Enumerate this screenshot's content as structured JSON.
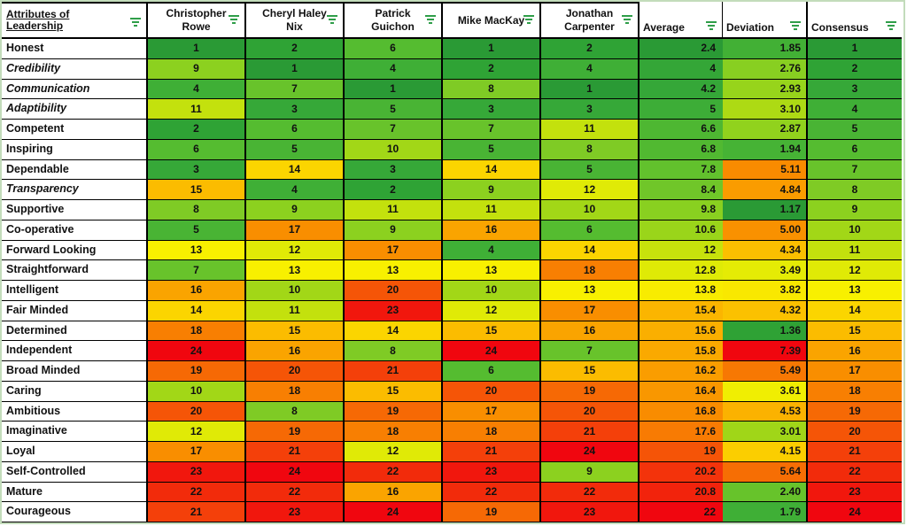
{
  "table": {
    "header": {
      "attribute_label": "Attributes of Leadership",
      "raters": [
        "Christopher Rowe",
        "Cheryl Haley Nix",
        "Patrick Guichon",
        "Mike MacKay",
        "Jonathan Carpenter"
      ],
      "average_label": "Average",
      "deviation_label": "Deviation",
      "consensus_label": "Consensus"
    },
    "rows": [
      {
        "attribute": "Honest",
        "italic": false,
        "ratings": [
          1,
          2,
          6,
          1,
          2
        ],
        "average": "2.4",
        "deviation": "1.85",
        "consensus": "1"
      },
      {
        "attribute": "Credibility",
        "italic": true,
        "ratings": [
          9,
          1,
          4,
          2,
          4
        ],
        "average": "4",
        "deviation": "2.76",
        "consensus": "2"
      },
      {
        "attribute": "Communication",
        "italic": true,
        "ratings": [
          4,
          7,
          1,
          8,
          1
        ],
        "average": "4.2",
        "deviation": "2.93",
        "consensus": "3"
      },
      {
        "attribute": "Adaptibility",
        "italic": true,
        "ratings": [
          11,
          3,
          5,
          3,
          3
        ],
        "average": "5",
        "deviation": "3.10",
        "consensus": "4"
      },
      {
        "attribute": "Competent",
        "italic": false,
        "ratings": [
          2,
          6,
          7,
          7,
          11
        ],
        "average": "6.6",
        "deviation": "2.87",
        "consensus": "5"
      },
      {
        "attribute": "Inspiring",
        "italic": false,
        "ratings": [
          6,
          5,
          10,
          5,
          8
        ],
        "average": "6.8",
        "deviation": "1.94",
        "consensus": "6"
      },
      {
        "attribute": "Dependable",
        "italic": false,
        "ratings": [
          3,
          14,
          3,
          14,
          5
        ],
        "average": "7.8",
        "deviation": "5.11",
        "consensus": "7"
      },
      {
        "attribute": "Transparency",
        "italic": true,
        "ratings": [
          15,
          4,
          2,
          9,
          12
        ],
        "average": "8.4",
        "deviation": "4.84",
        "consensus": "8"
      },
      {
        "attribute": "Supportive",
        "italic": false,
        "ratings": [
          8,
          9,
          11,
          11,
          10
        ],
        "average": "9.8",
        "deviation": "1.17",
        "consensus": "9"
      },
      {
        "attribute": "Co-operative",
        "italic": false,
        "ratings": [
          5,
          17,
          9,
          16,
          6
        ],
        "average": "10.6",
        "deviation": "5.00",
        "consensus": "10"
      },
      {
        "attribute": "Forward Looking",
        "italic": false,
        "ratings": [
          13,
          12,
          17,
          4,
          14
        ],
        "average": "12",
        "deviation": "4.34",
        "consensus": "11"
      },
      {
        "attribute": "Straightforward",
        "italic": false,
        "ratings": [
          7,
          13,
          13,
          13,
          18
        ],
        "average": "12.8",
        "deviation": "3.49",
        "consensus": "12"
      },
      {
        "attribute": "Intelligent",
        "italic": false,
        "ratings": [
          16,
          10,
          20,
          10,
          13
        ],
        "average": "13.8",
        "deviation": "3.82",
        "consensus": "13"
      },
      {
        "attribute": "Fair Minded",
        "italic": false,
        "ratings": [
          14,
          11,
          23,
          12,
          17
        ],
        "average": "15.4",
        "deviation": "4.32",
        "consensus": "14"
      },
      {
        "attribute": "Determined",
        "italic": false,
        "ratings": [
          18,
          15,
          14,
          15,
          16
        ],
        "average": "15.6",
        "deviation": "1.36",
        "consensus": "15"
      },
      {
        "attribute": "Independent",
        "italic": false,
        "ratings": [
          24,
          16,
          8,
          24,
          7
        ],
        "average": "15.8",
        "deviation": "7.39",
        "consensus": "16"
      },
      {
        "attribute": "Broad Minded",
        "italic": false,
        "ratings": [
          19,
          20,
          21,
          6,
          15
        ],
        "average": "16.2",
        "deviation": "5.49",
        "consensus": "17"
      },
      {
        "attribute": "Caring",
        "italic": false,
        "ratings": [
          10,
          18,
          15,
          20,
          19
        ],
        "average": "16.4",
        "deviation": "3.61",
        "consensus": "18"
      },
      {
        "attribute": "Ambitious",
        "italic": false,
        "ratings": [
          20,
          8,
          19,
          17,
          20
        ],
        "average": "16.8",
        "deviation": "4.53",
        "consensus": "19"
      },
      {
        "attribute": "Imaginative",
        "italic": false,
        "ratings": [
          12,
          19,
          18,
          18,
          21
        ],
        "average": "17.6",
        "deviation": "3.01",
        "consensus": "20"
      },
      {
        "attribute": "Loyal",
        "italic": false,
        "ratings": [
          17,
          21,
          12,
          21,
          24
        ],
        "average": "19",
        "deviation": "4.15",
        "consensus": "21"
      },
      {
        "attribute": "Self-Controlled",
        "italic": false,
        "ratings": [
          23,
          24,
          22,
          23,
          9
        ],
        "average": "20.2",
        "deviation": "5.64",
        "consensus": "22"
      },
      {
        "attribute": "Mature",
        "italic": false,
        "ratings": [
          22,
          22,
          16,
          22,
          22
        ],
        "average": "20.8",
        "deviation": "2.40",
        "consensus": "23"
      },
      {
        "attribute": "Courageous",
        "italic": false,
        "ratings": [
          21,
          23,
          24,
          19,
          23
        ],
        "average": "22",
        "deviation": "1.79",
        "consensus": "24"
      }
    ]
  },
  "heatmap": {
    "palette": [
      "#2A9A35",
      "#2FA335",
      "#36A838",
      "#3FAF36",
      "#49B434",
      "#55BC30",
      "#68C32B",
      "#7FCB25",
      "#8CD11F",
      "#A2D717",
      "#C3E10D",
      "#E0EA06",
      "#F8F000",
      "#FBD500",
      "#FBBC00",
      "#FAA400",
      "#F98E00",
      "#F87F02",
      "#F66905",
      "#F55507",
      "#F4400A",
      "#F22B0B",
      "#F1170D",
      "#F0060F"
    ],
    "scales": {
      "ratings": {
        "min": 1,
        "mid": 12.5,
        "max": 24
      },
      "average": {
        "min": 2.4,
        "mid": 13.3,
        "max": 22
      },
      "deviation": {
        "min": 1.17,
        "mid": 3.55,
        "max": 7.39
      },
      "consensus": {
        "min": 1,
        "mid": 12.5,
        "max": 24
      }
    }
  },
  "colors": {
    "filter_icon": "#2F9E49",
    "outer_border": "#C3DCBB",
    "grid_line": "#000000",
    "header_bg": "#FFFFFF",
    "text": "#111111"
  }
}
